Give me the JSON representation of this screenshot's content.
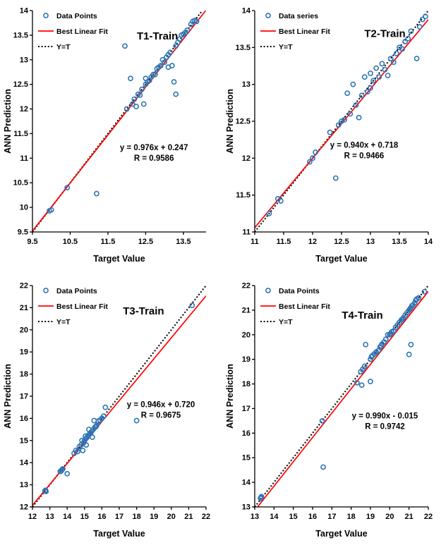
{
  "page": {
    "background": "#ffffff"
  },
  "style": {
    "marker_color": "#2e75b6",
    "fit_color": "#ff0000",
    "identity_color": "#000000",
    "text_color": "#000000"
  },
  "chart_data": [
    {
      "type": "scatter",
      "title": "T1-Train",
      "xlabel": "Target Value",
      "ylabel": "ANN Prediction",
      "xlim": [
        9.5,
        14.1
      ],
      "ylim": [
        9.5,
        14
      ],
      "xticks": [
        9.5,
        10.5,
        11.5,
        12.5,
        13.5
      ],
      "xtick_labels": [
        "9.5",
        "10.5",
        "11.5",
        "12.5",
        "13.5"
      ],
      "yticks": [
        9.5,
        10,
        10.5,
        11,
        11.5,
        12,
        12.5,
        13,
        13.5,
        14
      ],
      "ytick_labels": [
        "9.5",
        "10",
        "10.5",
        "11",
        "11.5",
        "12",
        "12.5",
        "13",
        "13.5",
        "14"
      ],
      "legend": [
        "Data Points",
        "Best Linear Fit",
        "Y=T"
      ],
      "legend_position": "top-left-inside",
      "grid": false,
      "equation": "y = 0.976x + 0.247",
      "r_label": "R = 0.9586",
      "fit": {
        "slope": 0.976,
        "intercept": 0.247
      },
      "layout": {
        "title_frac": [
          0.72,
          0.13
        ],
        "eq_frac": [
          0.7,
          0.63
        ],
        "legend_offset": [
          8,
          2
        ]
      },
      "points": [
        [
          9.95,
          9.93
        ],
        [
          10.0,
          9.95
        ],
        [
          10.42,
          10.4
        ],
        [
          11.2,
          10.28
        ],
        [
          11.95,
          13.28
        ],
        [
          12.0,
          12.0
        ],
        [
          12.1,
          12.62
        ],
        [
          12.15,
          12.1
        ],
        [
          12.2,
          12.2
        ],
        [
          12.25,
          12.05
        ],
        [
          12.3,
          12.3
        ],
        [
          12.35,
          12.28
        ],
        [
          12.4,
          12.4
        ],
        [
          12.45,
          12.1
        ],
        [
          12.5,
          12.5
        ],
        [
          12.5,
          12.62
        ],
        [
          12.55,
          12.55
        ],
        [
          12.6,
          12.58
        ],
        [
          12.65,
          12.65
        ],
        [
          12.7,
          12.7
        ],
        [
          12.75,
          12.7
        ],
        [
          12.8,
          12.82
        ],
        [
          12.85,
          12.85
        ],
        [
          12.9,
          12.88
        ],
        [
          12.95,
          13.0
        ],
        [
          13.0,
          12.95
        ],
        [
          13.05,
          13.05
        ],
        [
          13.1,
          12.85
        ],
        [
          13.1,
          13.1
        ],
        [
          13.15,
          13.15
        ],
        [
          13.2,
          12.88
        ],
        [
          13.25,
          12.55
        ],
        [
          13.3,
          13.28
        ],
        [
          13.3,
          12.3
        ],
        [
          13.35,
          13.35
        ],
        [
          13.4,
          13.42
        ],
        [
          13.45,
          13.5
        ],
        [
          13.5,
          13.52
        ],
        [
          13.55,
          13.55
        ],
        [
          13.6,
          13.6
        ],
        [
          13.7,
          13.72
        ],
        [
          13.75,
          13.78
        ],
        [
          13.8,
          13.8
        ],
        [
          13.85,
          13.78
        ]
      ]
    },
    {
      "type": "scatter",
      "title": "T2-Train",
      "xlabel": "Target Value",
      "ylabel": "ANN Prediction",
      "xlim": [
        11,
        14
      ],
      "ylim": [
        11,
        14
      ],
      "xticks": [
        11,
        11.5,
        12,
        12.5,
        13,
        13.5,
        14
      ],
      "xtick_labels": [
        "11",
        "11.5",
        "12",
        "12.5",
        "13",
        "13.5",
        "14"
      ],
      "yticks": [
        11,
        11.5,
        12,
        12.5,
        13,
        13.5,
        14
      ],
      "ytick_labels": [
        "11",
        "11.5",
        "12",
        "12.5",
        "13",
        "13.5",
        "14"
      ],
      "legend": [
        "Data series",
        "Best Linear Fit",
        "Y=T"
      ],
      "legend_position": "top-left-inside",
      "grid": false,
      "equation": "y = 0.940x + 0.718",
      "r_label": "R = 0.9466",
      "fit": {
        "slope": 0.94,
        "intercept": 0.718
      },
      "layout": {
        "title_frac": [
          0.75,
          0.12
        ],
        "eq_frac": [
          0.63,
          0.62
        ],
        "legend_offset": [
          8,
          2
        ]
      },
      "points": [
        [
          11.25,
          11.25
        ],
        [
          11.4,
          11.45
        ],
        [
          11.45,
          11.42
        ],
        [
          11.95,
          11.95
        ],
        [
          12.0,
          12.0
        ],
        [
          12.05,
          12.08
        ],
        [
          12.3,
          12.35
        ],
        [
          12.4,
          11.73
        ],
        [
          12.45,
          12.45
        ],
        [
          12.5,
          12.5
        ],
        [
          12.55,
          12.52
        ],
        [
          12.6,
          12.88
        ],
        [
          12.65,
          12.6
        ],
        [
          12.7,
          13.0
        ],
        [
          12.75,
          12.72
        ],
        [
          12.8,
          12.55
        ],
        [
          12.85,
          12.85
        ],
        [
          12.9,
          13.1
        ],
        [
          12.95,
          12.9
        ],
        [
          13.0,
          13.15
        ],
        [
          13.0,
          12.95
        ],
        [
          13.05,
          13.05
        ],
        [
          13.1,
          13.22
        ],
        [
          13.15,
          13.1
        ],
        [
          13.2,
          13.28
        ],
        [
          13.25,
          13.2
        ],
        [
          13.3,
          13.12
        ],
        [
          13.35,
          13.35
        ],
        [
          13.4,
          13.3
        ],
        [
          13.45,
          13.42
        ],
        [
          13.5,
          13.5
        ],
        [
          13.55,
          13.48
        ],
        [
          13.6,
          13.58
        ],
        [
          13.65,
          13.62
        ],
        [
          13.7,
          13.72
        ],
        [
          13.8,
          13.35
        ],
        [
          13.85,
          13.78
        ],
        [
          13.9,
          13.88
        ],
        [
          13.95,
          13.92
        ]
      ]
    },
    {
      "type": "scatter",
      "title": "T3-Train",
      "xlabel": "Target Value",
      "ylabel": "ANN Prediction",
      "xlim": [
        12,
        22
      ],
      "ylim": [
        12,
        22
      ],
      "xticks": [
        12,
        13,
        14,
        15,
        16,
        17,
        18,
        19,
        20,
        21,
        22
      ],
      "xtick_labels": [
        "12",
        "13",
        "14",
        "15",
        "16",
        "17",
        "18",
        "19",
        "20",
        "21",
        "22"
      ],
      "yticks": [
        12,
        13,
        14,
        15,
        16,
        17,
        18,
        19,
        20,
        21,
        22
      ],
      "ytick_labels": [
        "12",
        "13",
        "14",
        "15",
        "16",
        "17",
        "18",
        "19",
        "20",
        "21",
        "22"
      ],
      "legend": [
        "Data Points",
        "Best Linear Fit",
        "Y=T"
      ],
      "legend_position": "top-left-inside",
      "grid": false,
      "equation": "y = 0.946x + 0.720",
      "r_label": "R = 0.9675",
      "fit": {
        "slope": 0.946,
        "intercept": 0.72
      },
      "layout": {
        "title_frac": [
          0.64,
          0.13
        ],
        "eq_frac": [
          0.74,
          0.55
        ],
        "legend_offset": [
          8,
          2
        ]
      },
      "points": [
        [
          12.72,
          12.72
        ],
        [
          12.75,
          12.75
        ],
        [
          12.78,
          12.7
        ],
        [
          13.6,
          13.6
        ],
        [
          13.65,
          13.62
        ],
        [
          13.7,
          13.68
        ],
        [
          13.75,
          13.72
        ],
        [
          14.0,
          13.5
        ],
        [
          14.4,
          14.42
        ],
        [
          14.5,
          14.55
        ],
        [
          14.6,
          14.5
        ],
        [
          14.7,
          14.72
        ],
        [
          14.8,
          14.8
        ],
        [
          14.85,
          15.0
        ],
        [
          14.9,
          14.55
        ],
        [
          14.95,
          14.9
        ],
        [
          15.0,
          15.0
        ],
        [
          15.05,
          15.2
        ],
        [
          15.1,
          15.1
        ],
        [
          15.1,
          14.8
        ],
        [
          15.15,
          15.15
        ],
        [
          15.2,
          15.22
        ],
        [
          15.25,
          15.5
        ],
        [
          15.3,
          15.3
        ],
        [
          15.35,
          15.32
        ],
        [
          15.4,
          15.4
        ],
        [
          15.45,
          15.15
        ],
        [
          15.5,
          15.5
        ],
        [
          15.55,
          15.9
        ],
        [
          15.6,
          15.6
        ],
        [
          15.65,
          15.62
        ],
        [
          15.7,
          15.68
        ],
        [
          15.8,
          15.88
        ],
        [
          15.9,
          15.92
        ],
        [
          16.0,
          16.0
        ],
        [
          16.1,
          16.1
        ],
        [
          16.2,
          16.5
        ],
        [
          18.0,
          15.9
        ],
        [
          21.2,
          21.1
        ]
      ]
    },
    {
      "type": "scatter",
      "title": "T4-Train",
      "xlabel": "Target Value",
      "ylabel": "ANN Prediction",
      "xlim": [
        13,
        22
      ],
      "ylim": [
        13,
        22
      ],
      "xticks": [
        13,
        14,
        15,
        16,
        17,
        18,
        19,
        20,
        21,
        22
      ],
      "xtick_labels": [
        "13",
        "14",
        "15",
        "16",
        "17",
        "18",
        "19",
        "20",
        "21",
        "22"
      ],
      "yticks": [
        13,
        14,
        15,
        16,
        17,
        18,
        19,
        20,
        21,
        22
      ],
      "ytick_labels": [
        "13",
        "14",
        "15",
        "16",
        "17",
        "18",
        "19",
        "20",
        "21",
        "22"
      ],
      "legend": [
        "Data Points",
        "Best Linear Fit",
        "Y=T"
      ],
      "legend_position": "top-left-inside",
      "grid": false,
      "equation": "y = 0.990x - 0.015",
      "r_label": "R = 0.9742",
      "fit": {
        "slope": 0.99,
        "intercept": -0.015
      },
      "layout": {
        "title_frac": [
          0.62,
          0.15
        ],
        "eq_frac": [
          0.75,
          0.6
        ],
        "legend_offset": [
          8,
          2
        ]
      },
      "points": [
        [
          13.3,
          13.35
        ],
        [
          13.32,
          13.38
        ],
        [
          13.35,
          13.42
        ],
        [
          16.5,
          16.5
        ],
        [
          16.55,
          14.62
        ],
        [
          18.3,
          18.05
        ],
        [
          18.5,
          18.5
        ],
        [
          18.55,
          17.95
        ],
        [
          18.6,
          18.6
        ],
        [
          18.7,
          18.72
        ],
        [
          18.75,
          19.6
        ],
        [
          19.0,
          19.0
        ],
        [
          19.0,
          18.1
        ],
        [
          19.05,
          19.1
        ],
        [
          19.1,
          19.15
        ],
        [
          19.2,
          19.22
        ],
        [
          19.3,
          19.3
        ],
        [
          19.4,
          19.35
        ],
        [
          19.5,
          19.5
        ],
        [
          19.55,
          19.55
        ],
        [
          19.6,
          19.62
        ],
        [
          19.7,
          19.7
        ],
        [
          19.8,
          19.82
        ],
        [
          19.9,
          20.0
        ],
        [
          20.0,
          20.0
        ],
        [
          20.05,
          20.05
        ],
        [
          20.1,
          20.12
        ],
        [
          20.2,
          20.15
        ],
        [
          20.3,
          20.3
        ],
        [
          20.4,
          20.4
        ],
        [
          20.5,
          20.5
        ],
        [
          20.6,
          20.6
        ],
        [
          20.65,
          20.62
        ],
        [
          20.7,
          20.68
        ],
        [
          20.8,
          20.8
        ],
        [
          20.9,
          20.9
        ],
        [
          21.0,
          21.0
        ],
        [
          21.0,
          19.2
        ],
        [
          21.05,
          21.05
        ],
        [
          21.1,
          21.1
        ],
        [
          21.1,
          19.6
        ],
        [
          21.15,
          21.18
        ],
        [
          21.2,
          21.2
        ],
        [
          21.3,
          21.3
        ],
        [
          21.35,
          21.4
        ],
        [
          21.4,
          21.45
        ],
        [
          21.5,
          21.5
        ],
        [
          21.8,
          21.75
        ]
      ]
    }
  ]
}
